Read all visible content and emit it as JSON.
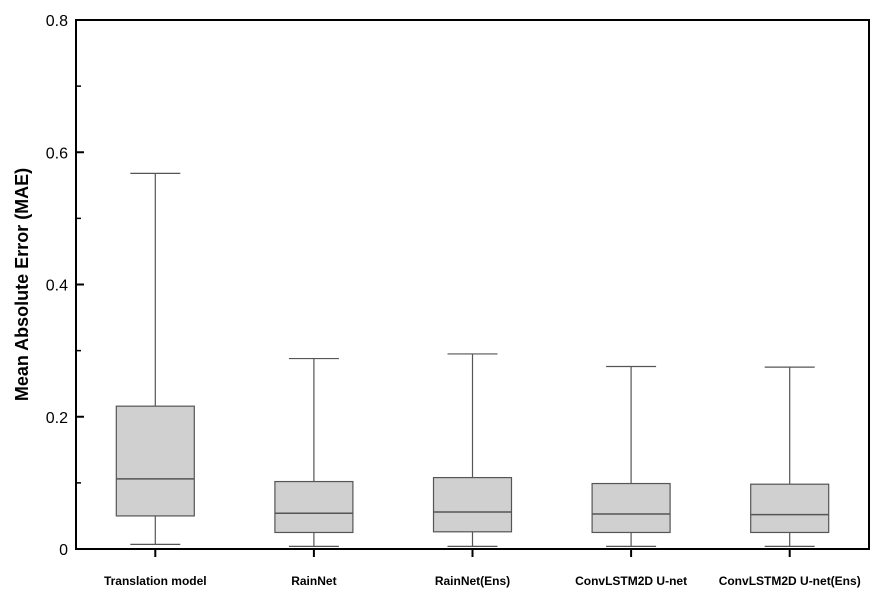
{
  "chart_data": {
    "type": "box",
    "ylabel": "Mean Absolute Error (MAE)",
    "xlabel": "",
    "ylim": [
      0,
      0.8
    ],
    "yticks": [
      {
        "value": 0,
        "label": "0"
      },
      {
        "value": 0.2,
        "label": "0.2"
      },
      {
        "value": 0.4,
        "label": "0.4"
      },
      {
        "value": 0.6,
        "label": "0.6"
      },
      {
        "value": 0.8,
        "label": "0.8"
      }
    ],
    "yminor": [
      0.1,
      0.3,
      0.5,
      0.7
    ],
    "grid": false,
    "box_color": "#d0d0d0",
    "line_color": "#555555",
    "categories": [
      "Translation model",
      "RainNet",
      "RainNet(Ens)",
      "ConvLSTM2D U-net",
      "ConvLSTM2D U-net(Ens)"
    ],
    "boxes": [
      {
        "whislo": 0.007,
        "q1": 0.05,
        "median": 0.106,
        "q3": 0.216,
        "whishi": 0.568
      },
      {
        "whislo": 0.004,
        "q1": 0.025,
        "median": 0.054,
        "q3": 0.102,
        "whishi": 0.288
      },
      {
        "whislo": 0.004,
        "q1": 0.026,
        "median": 0.056,
        "q3": 0.108,
        "whishi": 0.295
      },
      {
        "whislo": 0.004,
        "q1": 0.025,
        "median": 0.053,
        "q3": 0.099,
        "whishi": 0.276
      },
      {
        "whislo": 0.004,
        "q1": 0.025,
        "median": 0.052,
        "q3": 0.098,
        "whishi": 0.275
      }
    ]
  }
}
